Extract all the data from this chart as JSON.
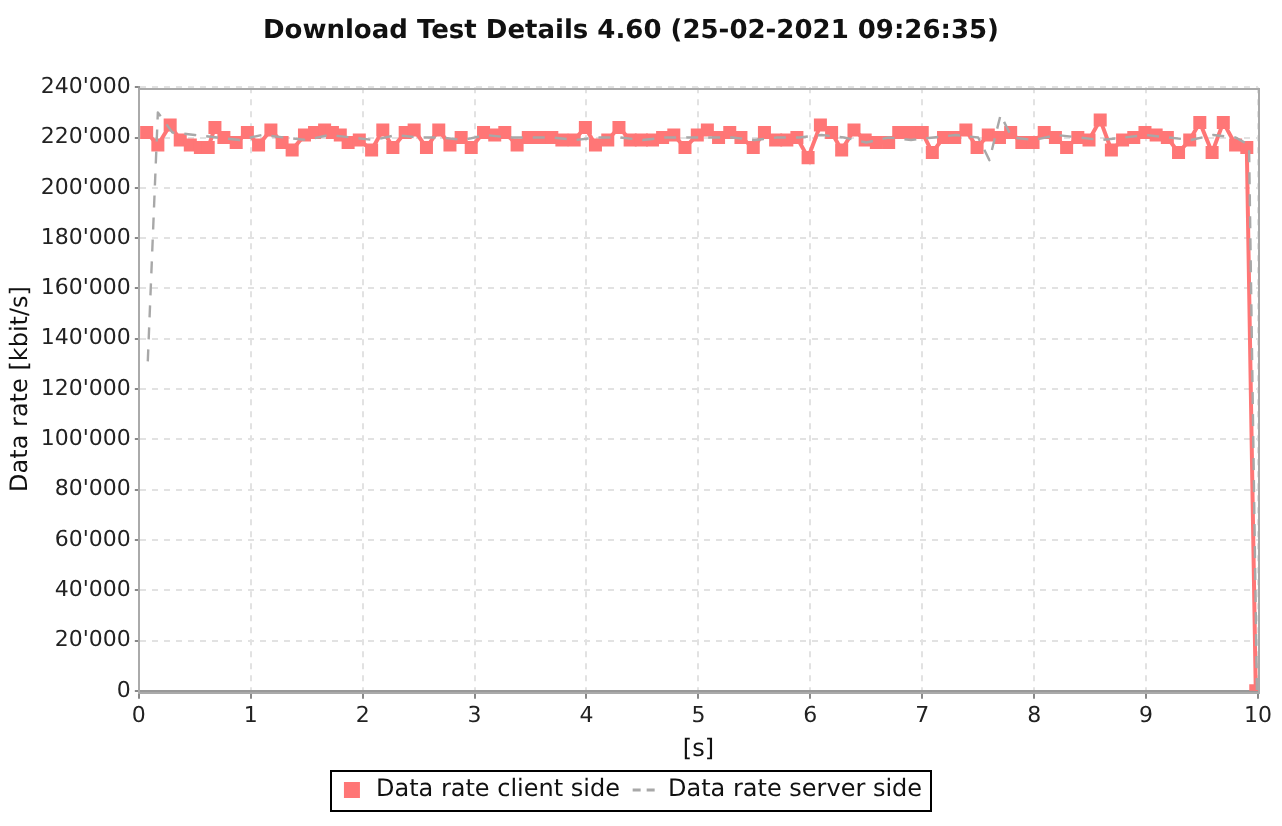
{
  "chart_data": {
    "type": "line",
    "title": "Download Test Details 4.60 (25-02-2021 09:26:35)",
    "xlabel": "[s]",
    "ylabel": "Data rate [kbit/s]",
    "xlim": [
      0,
      10
    ],
    "xticks": [
      0,
      1,
      2,
      3,
      4,
      5,
      6,
      7,
      8,
      9,
      10
    ],
    "ylim": [
      0,
      240000
    ],
    "yticks": [
      0,
      {
        "value": 20000,
        "label": "20'000"
      },
      {
        "value": 40000,
        "label": "40'000"
      },
      {
        "value": 60000,
        "label": "60'000"
      },
      {
        "value": 80000,
        "label": "80'000"
      },
      {
        "value": 100000,
        "label": "100'000"
      },
      {
        "value": 120000,
        "label": "120'000"
      },
      {
        "value": 140000,
        "label": "140'000"
      },
      {
        "value": 160000,
        "label": "160'000"
      },
      {
        "value": 180000,
        "label": "180'000"
      },
      {
        "value": 200000,
        "label": "200'000"
      },
      {
        "value": 220000,
        "label": "220'000"
      },
      {
        "value": 240000,
        "label": "240'000"
      }
    ],
    "grid": true,
    "legend": "bottom",
    "series": [
      {
        "name": "Data rate client side",
        "color": "#ff7676",
        "marker": "square",
        "line_style": "solid",
        "x": [
          0.07,
          0.17,
          0.28,
          0.37,
          0.46,
          0.55,
          0.62,
          0.68,
          0.76,
          0.87,
          0.97,
          1.07,
          1.18,
          1.28,
          1.37,
          1.48,
          1.57,
          1.66,
          1.73,
          1.8,
          1.87,
          1.97,
          2.08,
          2.18,
          2.27,
          2.38,
          2.46,
          2.57,
          2.68,
          2.78,
          2.88,
          2.97,
          3.08,
          3.18,
          3.27,
          3.38,
          3.48,
          3.58,
          3.69,
          3.78,
          3.89,
          3.99,
          4.08,
          4.19,
          4.29,
          4.39,
          4.49,
          4.59,
          4.68,
          4.78,
          4.88,
          4.99,
          5.08,
          5.18,
          5.28,
          5.38,
          5.49,
          5.59,
          5.69,
          5.79,
          5.88,
          5.98,
          6.09,
          6.19,
          6.28,
          6.39,
          6.49,
          6.59,
          6.7,
          6.79,
          6.89,
          7.0,
          7.09,
          7.19,
          7.29,
          7.39,
          7.49,
          7.59,
          7.69,
          7.79,
          7.89,
          7.99,
          8.09,
          8.19,
          8.29,
          8.39,
          8.49,
          8.59,
          8.69,
          8.79,
          8.89,
          8.99,
          9.09,
          9.19,
          9.29,
          9.39,
          9.48,
          9.59,
          9.69,
          9.8,
          9.9,
          9.98
        ],
        "values": [
          222000,
          217000,
          225000,
          219000,
          217000,
          216000,
          216000,
          224000,
          220000,
          218000,
          222000,
          217000,
          223000,
          218000,
          215000,
          221000,
          222000,
          223000,
          222000,
          221000,
          218000,
          219000,
          215000,
          223000,
          216000,
          222000,
          223000,
          216000,
          223000,
          217000,
          220000,
          216000,
          222000,
          221000,
          222000,
          217000,
          220000,
          220000,
          220000,
          219000,
          219000,
          224000,
          217000,
          219000,
          224000,
          219000,
          219000,
          219000,
          220000,
          221000,
          216000,
          221000,
          223000,
          220000,
          222000,
          220000,
          216000,
          222000,
          219000,
          219000,
          220000,
          212000,
          225000,
          222000,
          215000,
          223000,
          219000,
          218000,
          218000,
          222000,
          222000,
          222000,
          214000,
          220000,
          220000,
          223000,
          216000,
          221000,
          220000,
          222000,
          218000,
          218000,
          222000,
          220000,
          216000,
          220000,
          219000,
          227000,
          215000,
          219000,
          220000,
          222000,
          221000,
          220000,
          214000,
          219000,
          226000,
          214000,
          226000,
          217000,
          216000,
          0
        ]
      },
      {
        "name": "Data rate server side",
        "color": "#a8a8a8",
        "marker": "none",
        "line_style": "dashed",
        "x": [
          0.08,
          0.17,
          0.3,
          0.5,
          0.7,
          0.9,
          1.1,
          1.3,
          1.5,
          1.7,
          1.9,
          2.1,
          2.3,
          2.5,
          2.7,
          2.9,
          3.1,
          3.3,
          3.5,
          3.7,
          3.9,
          4.1,
          4.3,
          4.5,
          4.7,
          4.9,
          5.1,
          5.3,
          5.5,
          5.7,
          5.9,
          6.1,
          6.3,
          6.5,
          6.7,
          6.9,
          7.1,
          7.3,
          7.5,
          7.6,
          7.7,
          7.8,
          8.0,
          8.2,
          8.4,
          8.6,
          8.8,
          9.0,
          9.2,
          9.4,
          9.6,
          9.8,
          9.92,
          9.99
        ],
        "values": [
          131000,
          230000,
          222000,
          221000,
          220000,
          219000,
          221000,
          220000,
          219000,
          221000,
          220000,
          219000,
          221000,
          220000,
          220000,
          219000,
          221000,
          220000,
          220000,
          220000,
          219000,
          220000,
          220000,
          219000,
          220000,
          220000,
          220000,
          220000,
          219000,
          220000,
          220000,
          221000,
          220000,
          218000,
          220000,
          219000,
          220000,
          221000,
          220000,
          211000,
          229000,
          220000,
          219000,
          221000,
          220000,
          219000,
          220000,
          221000,
          220000,
          219000,
          221000,
          220000,
          217000,
          0
        ]
      }
    ]
  }
}
